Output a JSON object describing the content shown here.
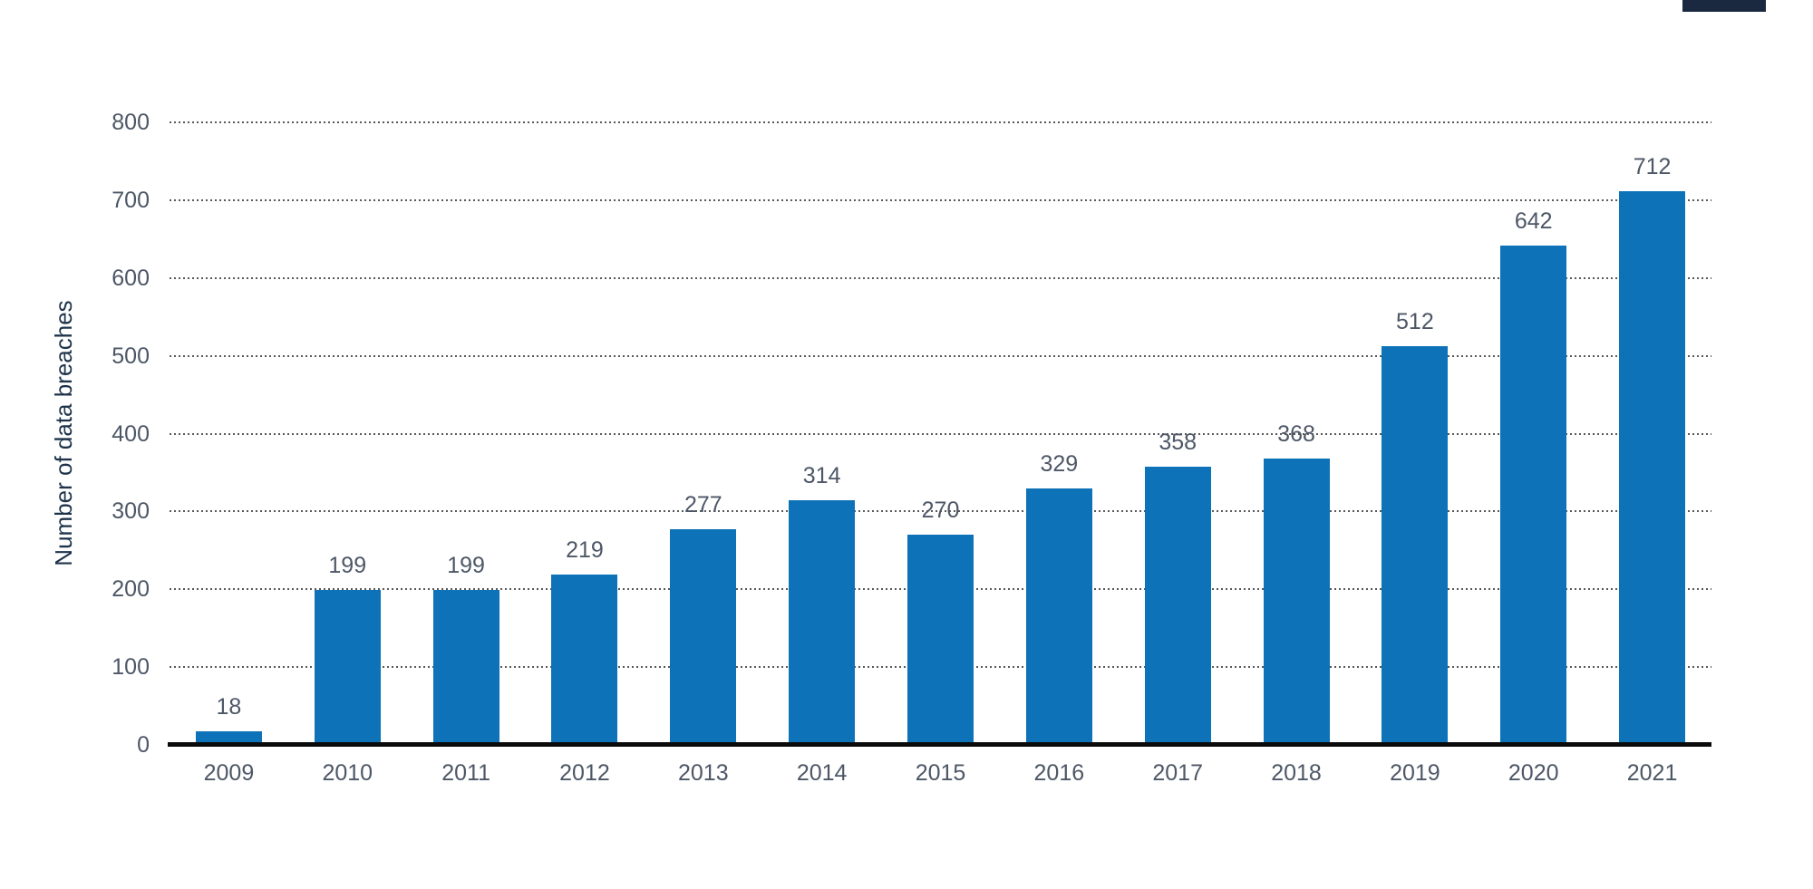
{
  "chart_data": {
    "type": "bar",
    "categories": [
      "2009",
      "2010",
      "2011",
      "2012",
      "2013",
      "2014",
      "2015",
      "2016",
      "2017",
      "2018",
      "2019",
      "2020",
      "2021"
    ],
    "values": [
      18,
      199,
      199,
      219,
      277,
      314,
      270,
      329,
      358,
      368,
      512,
      642,
      712
    ],
    "title": "",
    "xlabel": "",
    "ylabel": "Number of data breaches",
    "ylim": [
      0,
      800
    ],
    "yticks": [
      0,
      100,
      200,
      300,
      400,
      500,
      600,
      700,
      800
    ],
    "grid": "horizontal-dotted",
    "legend": "none",
    "bar_color": "#0d72b7",
    "tick_label_color": "#4d5766",
    "value_label_color": "#4d5766",
    "axis_title_color": "#1d3349",
    "gridline_color": "#595959",
    "axis_line_color": "#0a0a0a"
  },
  "artifact": {
    "description": "cropped dark rectangle at top-right edge",
    "color": "#1b2940"
  }
}
